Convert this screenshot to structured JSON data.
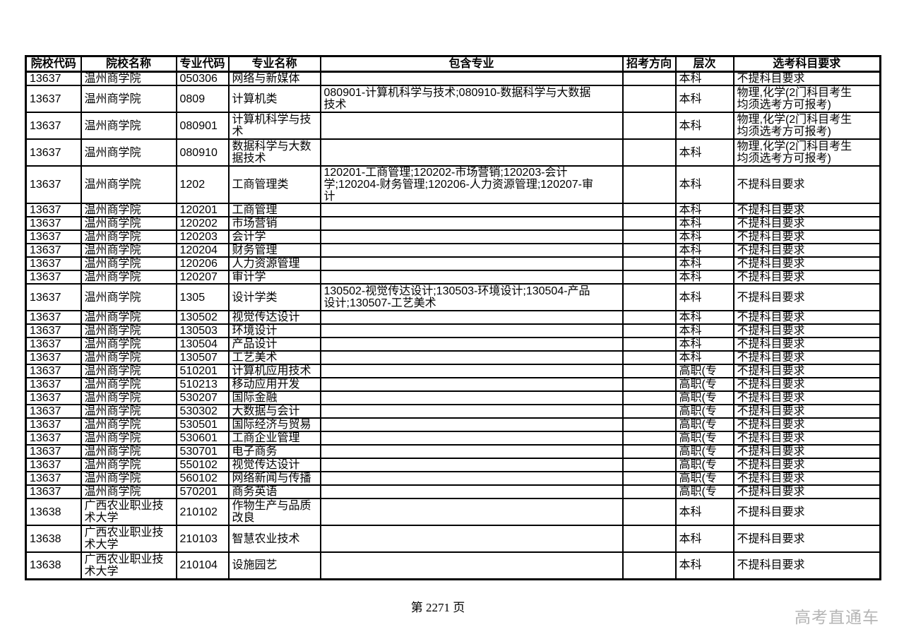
{
  "page": {
    "footer_page": "第 2271 页",
    "watermark": "高考直通车"
  },
  "colors": {
    "border": "#000000",
    "text": "#000000",
    "watermark": "#b5b5b5",
    "background": "#ffffff"
  },
  "table": {
    "headers": [
      "院校代码",
      "院校名称",
      "专业代码",
      "专业名称",
      "包含专业",
      "招考方向",
      "层次",
      "选考科目要求"
    ],
    "rows": [
      {
        "code": "13637",
        "college": "温州商学院",
        "major_code": "050306",
        "major": "网络与新媒体",
        "includes": "",
        "direction": "",
        "level": "本科",
        "subjects": "不提科目要求",
        "tall": false
      },
      {
        "code": "13637",
        "college": "温州商学院",
        "major_code": "0809",
        "major": "计算机类",
        "includes": "080901-计算机科学与技术;080910-数据科学与大数据技术",
        "direction": "",
        "level": "本科",
        "subjects": "物理,化学(2门科目考生均须选考方可报考)",
        "tall": true
      },
      {
        "code": "13637",
        "college": "温州商学院",
        "major_code": "080901",
        "major": "计算机科学与技术",
        "includes": "",
        "direction": "",
        "level": "本科",
        "subjects": "物理,化学(2门科目考生均须选考方可报考)",
        "tall": true
      },
      {
        "code": "13637",
        "college": "温州商学院",
        "major_code": "080910",
        "major": "数据科学与大数据技术",
        "includes": "",
        "direction": "",
        "level": "本科",
        "subjects": "物理,化学(2门科目考生均须选考方可报考)",
        "tall": true
      },
      {
        "code": "13637",
        "college": "温州商学院",
        "major_code": "1202",
        "major": "工商管理类",
        "includes": "120201-工商管理;120202-市场营销;120203-会计学;120204-财务管理;120206-人力资源管理;120207-审计",
        "direction": "",
        "level": "本科",
        "subjects": "不提科目要求",
        "tall": true
      },
      {
        "code": "13637",
        "college": "温州商学院",
        "major_code": "120201",
        "major": "工商管理",
        "includes": "",
        "direction": "",
        "level": "本科",
        "subjects": "不提科目要求",
        "tall": false
      },
      {
        "code": "13637",
        "college": "温州商学院",
        "major_code": "120202",
        "major": "市场营销",
        "includes": "",
        "direction": "",
        "level": "本科",
        "subjects": "不提科目要求",
        "tall": false
      },
      {
        "code": "13637",
        "college": "温州商学院",
        "major_code": "120203",
        "major": "会计学",
        "includes": "",
        "direction": "",
        "level": "本科",
        "subjects": "不提科目要求",
        "tall": false
      },
      {
        "code": "13637",
        "college": "温州商学院",
        "major_code": "120204",
        "major": "财务管理",
        "includes": "",
        "direction": "",
        "level": "本科",
        "subjects": "不提科目要求",
        "tall": false
      },
      {
        "code": "13637",
        "college": "温州商学院",
        "major_code": "120206",
        "major": "人力资源管理",
        "includes": "",
        "direction": "",
        "level": "本科",
        "subjects": "不提科目要求",
        "tall": false
      },
      {
        "code": "13637",
        "college": "温州商学院",
        "major_code": "120207",
        "major": "审计学",
        "includes": "",
        "direction": "",
        "level": "本科",
        "subjects": "不提科目要求",
        "tall": false
      },
      {
        "code": "13637",
        "college": "温州商学院",
        "major_code": "1305",
        "major": "设计学类",
        "includes": "130502-视觉传达设计;130503-环境设计;130504-产品设计;130507-工艺美术",
        "direction": "",
        "level": "本科",
        "subjects": "不提科目要求",
        "tall": true
      },
      {
        "code": "13637",
        "college": "温州商学院",
        "major_code": "130502",
        "major": "视觉传达设计",
        "includes": "",
        "direction": "",
        "level": "本科",
        "subjects": "不提科目要求",
        "tall": false
      },
      {
        "code": "13637",
        "college": "温州商学院",
        "major_code": "130503",
        "major": "环境设计",
        "includes": "",
        "direction": "",
        "level": "本科",
        "subjects": "不提科目要求",
        "tall": false
      },
      {
        "code": "13637",
        "college": "温州商学院",
        "major_code": "130504",
        "major": "产品设计",
        "includes": "",
        "direction": "",
        "level": "本科",
        "subjects": "不提科目要求",
        "tall": false
      },
      {
        "code": "13637",
        "college": "温州商学院",
        "major_code": "130507",
        "major": "工艺美术",
        "includes": "",
        "direction": "",
        "level": "本科",
        "subjects": "不提科目要求",
        "tall": false
      },
      {
        "code": "13637",
        "college": "温州商学院",
        "major_code": "510201",
        "major": "计算机应用技术",
        "includes": "",
        "direction": "",
        "level": "高职(专",
        "subjects": "不提科目要求",
        "tall": false
      },
      {
        "code": "13637",
        "college": "温州商学院",
        "major_code": "510213",
        "major": "移动应用开发",
        "includes": "",
        "direction": "",
        "level": "高职(专",
        "subjects": "不提科目要求",
        "tall": false
      },
      {
        "code": "13637",
        "college": "温州商学院",
        "major_code": "530207",
        "major": "国际金融",
        "includes": "",
        "direction": "",
        "level": "高职(专",
        "subjects": "不提科目要求",
        "tall": false
      },
      {
        "code": "13637",
        "college": "温州商学院",
        "major_code": "530302",
        "major": "大数据与会计",
        "includes": "",
        "direction": "",
        "level": "高职(专",
        "subjects": "不提科目要求",
        "tall": false
      },
      {
        "code": "13637",
        "college": "温州商学院",
        "major_code": "530501",
        "major": "国际经济与贸易",
        "includes": "",
        "direction": "",
        "level": "高职(专",
        "subjects": "不提科目要求",
        "tall": false
      },
      {
        "code": "13637",
        "college": "温州商学院",
        "major_code": "530601",
        "major": "工商企业管理",
        "includes": "",
        "direction": "",
        "level": "高职(专",
        "subjects": "不提科目要求",
        "tall": false
      },
      {
        "code": "13637",
        "college": "温州商学院",
        "major_code": "530701",
        "major": "电子商务",
        "includes": "",
        "direction": "",
        "level": "高职(专",
        "subjects": "不提科目要求",
        "tall": false
      },
      {
        "code": "13637",
        "college": "温州商学院",
        "major_code": "550102",
        "major": "视觉传达设计",
        "includes": "",
        "direction": "",
        "level": "高职(专",
        "subjects": "不提科目要求",
        "tall": false
      },
      {
        "code": "13637",
        "college": "温州商学院",
        "major_code": "560102",
        "major": "网络新闻与传播",
        "includes": "",
        "direction": "",
        "level": "高职(专",
        "subjects": "不提科目要求",
        "tall": false
      },
      {
        "code": "13637",
        "college": "温州商学院",
        "major_code": "570201",
        "major": "商务英语",
        "includes": "",
        "direction": "",
        "level": "高职(专",
        "subjects": "不提科目要求",
        "tall": false
      },
      {
        "code": "13638",
        "college": "广西农业职业技术大学",
        "major_code": "210102",
        "major": "作物生产与品质改良",
        "includes": "",
        "direction": "",
        "level": "本科",
        "subjects": "不提科目要求",
        "tall": true
      },
      {
        "code": "13638",
        "college": "广西农业职业技术大学",
        "major_code": "210103",
        "major": "智慧农业技术",
        "includes": "",
        "direction": "",
        "level": "本科",
        "subjects": "不提科目要求",
        "tall": true
      },
      {
        "code": "13638",
        "college": "广西农业职业技术大学",
        "major_code": "210104",
        "major": "设施园艺",
        "includes": "",
        "direction": "",
        "level": "本科",
        "subjects": "不提科目要求",
        "tall": true
      }
    ]
  }
}
